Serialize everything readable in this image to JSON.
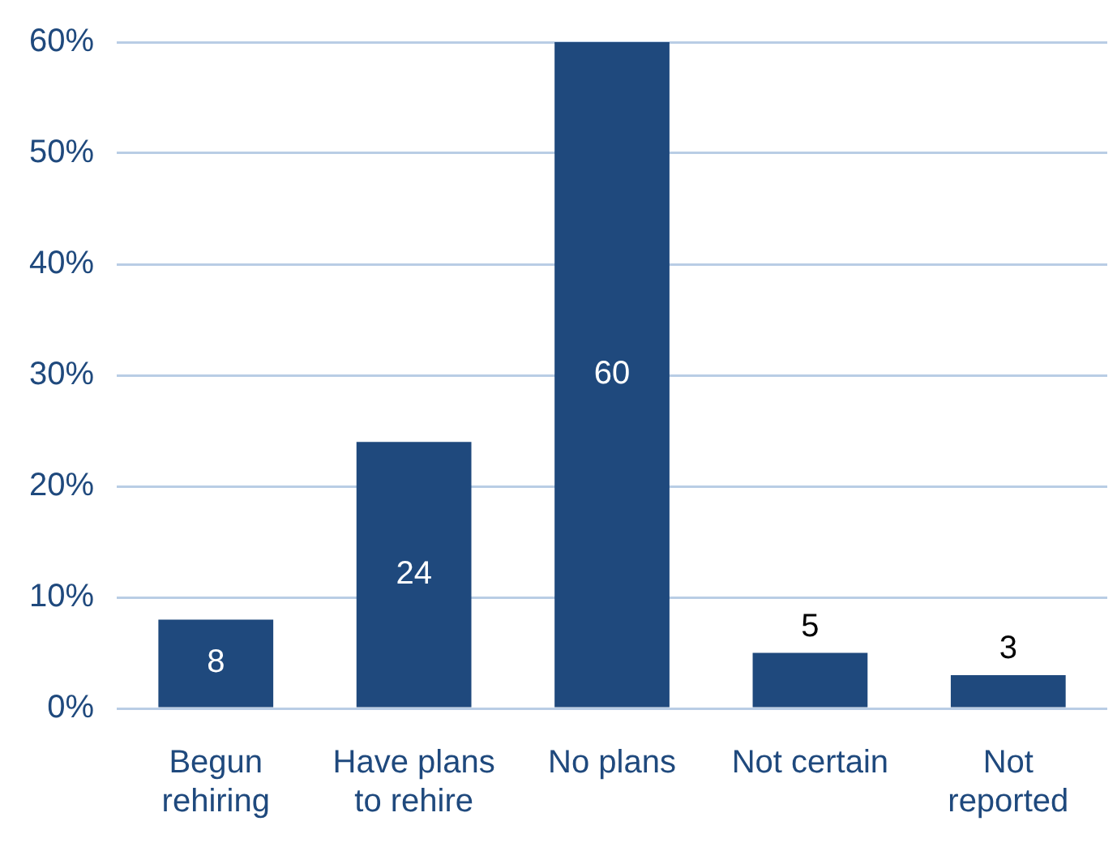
{
  "chart_data": {
    "type": "bar",
    "categories": [
      "Begun rehiring",
      "Have plans to rehire",
      "No plans",
      "Not certain",
      "Not reported"
    ],
    "values": [
      8,
      24,
      60,
      5,
      3
    ],
    "color": "#1f497d",
    "data_labels": true,
    "grid": "y",
    "ylim": [
      0,
      60
    ],
    "yticks": [
      {
        "value": 0,
        "label": "0%"
      },
      {
        "value": 10,
        "label": "10%"
      },
      {
        "value": 20,
        "label": "20%"
      },
      {
        "value": 30,
        "label": "30%"
      },
      {
        "value": 40,
        "label": "40%"
      },
      {
        "value": 50,
        "label": "50%"
      },
      {
        "value": 60,
        "label": "60%"
      }
    ]
  }
}
